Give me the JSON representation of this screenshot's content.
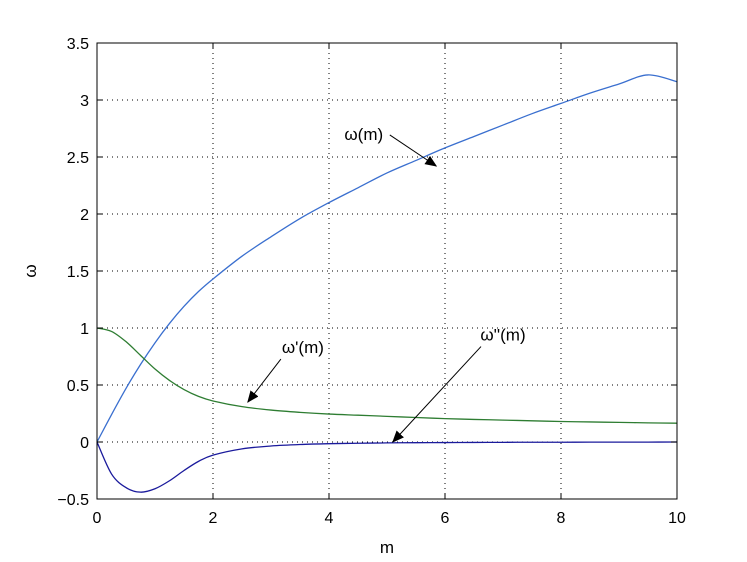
{
  "chart_data": {
    "type": "line",
    "xlabel": "m",
    "ylabel": "ω",
    "xlim": [
      0,
      10
    ],
    "ylim": [
      -0.5,
      3.5
    ],
    "xticks": [
      0,
      2,
      4,
      6,
      8,
      10
    ],
    "yticks": [
      -0.5,
      0,
      0.5,
      1,
      1.5,
      2,
      2.5,
      3,
      3.5
    ],
    "xtick_labels": [
      "0",
      "2",
      "4",
      "6",
      "8",
      "10"
    ],
    "ytick_labels": [
      "−0.5",
      "0",
      "0.5",
      "1",
      "1.5",
      "2",
      "2.5",
      "3",
      "3.5"
    ],
    "grid": true,
    "grid_style": "dotted",
    "legend": "none",
    "x": [
      0,
      0.25,
      0.5,
      0.75,
      1,
      1.25,
      1.5,
      1.75,
      2,
      2.5,
      3,
      3.5,
      4,
      4.5,
      5,
      5.5,
      6,
      6.5,
      7,
      7.5,
      8,
      8.5,
      9,
      9.5,
      10
    ],
    "series": [
      {
        "color": "#3a6fcf",
        "values": [
          0.0,
          0.24,
          0.47,
          0.68,
          0.87,
          1.04,
          1.19,
          1.32,
          1.43,
          1.63,
          1.8,
          1.96,
          2.1,
          2.23,
          2.36,
          2.47,
          2.58,
          2.68,
          2.78,
          2.88,
          2.97,
          3.06,
          3.14,
          3.22,
          3.16
        ]
      },
      {
        "color": "#2e7d32",
        "values": [
          1.0,
          0.97,
          0.88,
          0.76,
          0.64,
          0.54,
          0.46,
          0.4,
          0.36,
          0.31,
          0.28,
          0.26,
          0.245,
          0.235,
          0.225,
          0.215,
          0.205,
          0.198,
          0.192,
          0.186,
          0.18,
          0.176,
          0.172,
          0.168,
          0.165
        ]
      },
      {
        "color": "#1a1a9c",
        "values": [
          0.0,
          -0.28,
          -0.4,
          -0.44,
          -0.41,
          -0.34,
          -0.25,
          -0.17,
          -0.115,
          -0.06,
          -0.035,
          -0.022,
          -0.015,
          -0.011,
          -0.008,
          -0.006,
          -0.005,
          -0.004,
          -0.003,
          -0.002,
          -0.002,
          -0.001,
          -0.001,
          -0.001,
          0.0
        ]
      }
    ],
    "annotations": [
      {
        "text": "ω(m)",
        "text_x": 4.6,
        "text_y": 2.65,
        "arrow_to": [
          5.85,
          2.42
        ]
      },
      {
        "text": "ω'(m)",
        "text_x": 3.55,
        "text_y": 0.78,
        "arrow_to": [
          2.6,
          0.35
        ]
      },
      {
        "text": "ω''(m)",
        "text_x": 7.0,
        "text_y": 0.89,
        "arrow_to": [
          5.1,
          0.0
        ]
      }
    ]
  }
}
